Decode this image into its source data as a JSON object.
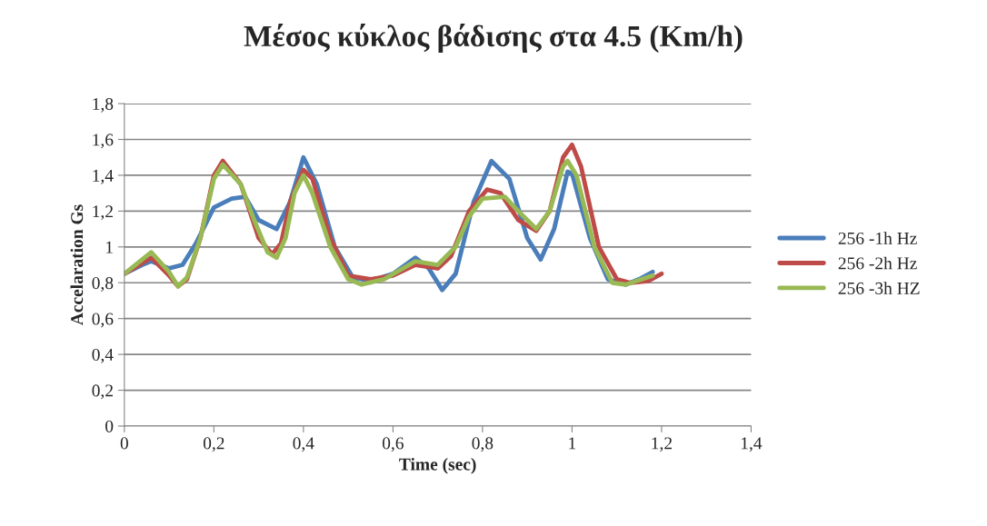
{
  "chart_data": {
    "type": "line",
    "title": "Μέσος κύκλος βάδισης στα 4.5 (Km/h)",
    "xlabel": "Time (sec)",
    "ylabel": "Accelaration Gs",
    "xlim": [
      0,
      1.4
    ],
    "xticks": [
      0,
      {
        "value": 0.2,
        "label": "0,2"
      },
      {
        "value": 0.4,
        "label": "0,4"
      },
      {
        "value": 0.6,
        "label": "0,6"
      },
      {
        "value": 0.8,
        "label": "0,8"
      },
      1,
      {
        "value": 1.2,
        "label": "1,2"
      },
      {
        "value": 1.4,
        "label": "1,4"
      }
    ],
    "ylim": [
      0,
      1.8
    ],
    "yticks": [
      0,
      {
        "value": 0.2,
        "label": "0,2"
      },
      {
        "value": 0.4,
        "label": "0,4"
      },
      {
        "value": 0.6,
        "label": "0,6"
      },
      {
        "value": 0.8,
        "label": "0,8"
      },
      1,
      {
        "value": 1.2,
        "label": "1,2"
      },
      {
        "value": 1.4,
        "label": "1,4"
      },
      {
        "value": 1.6,
        "label": "1,6"
      },
      {
        "value": 1.8,
        "label": "1,8"
      }
    ],
    "grid": "y",
    "legend": "right",
    "marker": "none",
    "line_style": "solid",
    "series": [
      {
        "name": "256 -1h Hz",
        "color": "#4a7ebb",
        "x": [
          0,
          0.04,
          0.06,
          0.1,
          0.13,
          0.16,
          0.2,
          0.24,
          0.27,
          0.3,
          0.34,
          0.37,
          0.4,
          0.43,
          0.47,
          0.51,
          0.55,
          0.6,
          0.65,
          0.68,
          0.71,
          0.74,
          0.78,
          0.82,
          0.86,
          0.9,
          0.93,
          0.96,
          0.99,
          1.0,
          1.04,
          1.08,
          1.12,
          1.15,
          1.18
        ],
        "values": [
          0.85,
          0.9,
          0.92,
          0.88,
          0.9,
          1.02,
          1.22,
          1.27,
          1.28,
          1.15,
          1.1,
          1.25,
          1.5,
          1.35,
          1.0,
          0.83,
          0.81,
          0.85,
          0.94,
          0.88,
          0.76,
          0.85,
          1.25,
          1.48,
          1.38,
          1.05,
          0.93,
          1.1,
          1.42,
          1.41,
          1.05,
          0.82,
          0.79,
          0.82,
          0.86
        ]
      },
      {
        "name": "256 -2h Hz",
        "color": "#be4b48",
        "x": [
          0,
          0.06,
          0.1,
          0.12,
          0.14,
          0.17,
          0.2,
          0.22,
          0.26,
          0.3,
          0.33,
          0.35,
          0.37,
          0.4,
          0.42,
          0.46,
          0.5,
          0.55,
          0.6,
          0.65,
          0.7,
          0.73,
          0.77,
          0.81,
          0.84,
          0.88,
          0.92,
          0.95,
          0.98,
          1.0,
          1.02,
          1.06,
          1.1,
          1.13,
          1.17,
          1.2
        ],
        "values": [
          0.85,
          0.94,
          0.84,
          0.78,
          0.82,
          1.05,
          1.4,
          1.48,
          1.35,
          1.05,
          0.96,
          1.02,
          1.25,
          1.43,
          1.38,
          1.05,
          0.84,
          0.82,
          0.84,
          0.9,
          0.88,
          0.95,
          1.2,
          1.32,
          1.3,
          1.15,
          1.09,
          1.2,
          1.5,
          1.57,
          1.45,
          1.0,
          0.82,
          0.8,
          0.81,
          0.85
        ]
      },
      {
        "name": "256 -3h HZ",
        "color": "#98b954",
        "x": [
          0,
          0.06,
          0.1,
          0.12,
          0.14,
          0.17,
          0.2,
          0.22,
          0.26,
          0.29,
          0.32,
          0.34,
          0.36,
          0.38,
          0.4,
          0.42,
          0.46,
          0.5,
          0.53,
          0.58,
          0.65,
          0.7,
          0.74,
          0.77,
          0.8,
          0.85,
          0.88,
          0.92,
          0.95,
          0.98,
          0.99,
          1.01,
          1.05,
          1.09,
          1.12,
          1.18
        ],
        "values": [
          0.85,
          0.97,
          0.86,
          0.78,
          0.83,
          1.05,
          1.38,
          1.46,
          1.35,
          1.15,
          0.97,
          0.94,
          1.05,
          1.3,
          1.4,
          1.3,
          1.0,
          0.82,
          0.79,
          0.82,
          0.92,
          0.9,
          1.0,
          1.17,
          1.27,
          1.28,
          1.2,
          1.1,
          1.2,
          1.45,
          1.48,
          1.4,
          1.0,
          0.8,
          0.79,
          0.84
        ]
      }
    ]
  }
}
